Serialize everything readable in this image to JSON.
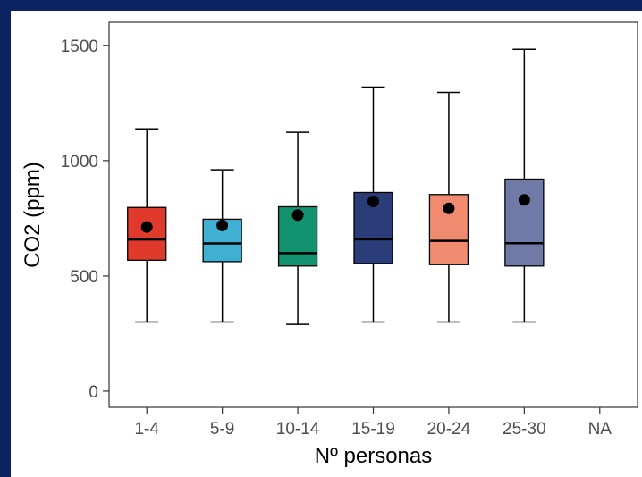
{
  "chart_data": {
    "type": "boxplot",
    "xlabel": "Nº personas",
    "ylabel": "CO2 (ppm)",
    "categories": [
      "1-4",
      "5-9",
      "10-14",
      "15-19",
      "20-24",
      "25-30",
      "NA"
    ],
    "ylim": [
      -70,
      1600
    ],
    "yticks": [
      0,
      500,
      1000,
      1500
    ],
    "grid": false,
    "boxes": [
      {
        "category": "1-4",
        "min": 300,
        "q1": 568,
        "median": 658,
        "q3": 797,
        "max": 1138,
        "mean": 712,
        "color": "#e03a2c"
      },
      {
        "category": "5-9",
        "min": 300,
        "q1": 562,
        "median": 641,
        "q3": 746,
        "max": 960,
        "mean": 719,
        "color": "#41b1d3"
      },
      {
        "category": "10-14",
        "min": 290,
        "q1": 543,
        "median": 599,
        "q3": 800,
        "max": 1123,
        "mean": 764,
        "color": "#13926f"
      },
      {
        "category": "15-19",
        "min": 300,
        "q1": 554,
        "median": 659,
        "q3": 862,
        "max": 1319,
        "mean": 823,
        "color": "#2a3d78"
      },
      {
        "category": "20-24",
        "min": 300,
        "q1": 549,
        "median": 652,
        "q3": 853,
        "max": 1296,
        "mean": 793,
        "color": "#f08b6f"
      },
      {
        "category": "25-30",
        "min": 300,
        "q1": 543,
        "median": 642,
        "q3": 920,
        "max": 1483,
        "mean": 830,
        "color": "#6f7ba6"
      }
    ]
  }
}
